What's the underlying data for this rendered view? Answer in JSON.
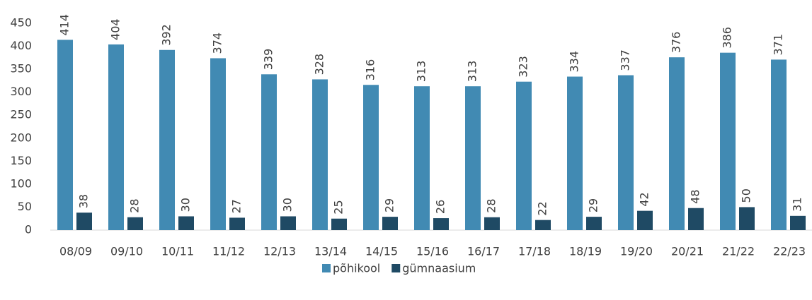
{
  "chart_data": {
    "type": "bar",
    "categories": [
      "08/09",
      "09/10",
      "10/11",
      "11/12",
      "12/13",
      "13/14",
      "14/15",
      "15/16",
      "16/17",
      "17/18",
      "18/19",
      "19/20",
      "20/21",
      "21/22",
      "22/23"
    ],
    "series": [
      {
        "name": "põhikool",
        "color": "#418ab3",
        "values": [
          414,
          404,
          392,
          374,
          339,
          328,
          316,
          313,
          313,
          323,
          334,
          337,
          376,
          386,
          371
        ]
      },
      {
        "name": "gümnaasium",
        "color": "#1f4a64",
        "values": [
          38,
          28,
          30,
          27,
          30,
          25,
          29,
          26,
          28,
          22,
          29,
          42,
          48,
          50,
          31
        ]
      }
    ],
    "ylim": [
      0,
      450
    ],
    "yticks": [
      0,
      50,
      100,
      150,
      200,
      250,
      300,
      350,
      400,
      450
    ],
    "grid": false,
    "legend": "bottom"
  }
}
